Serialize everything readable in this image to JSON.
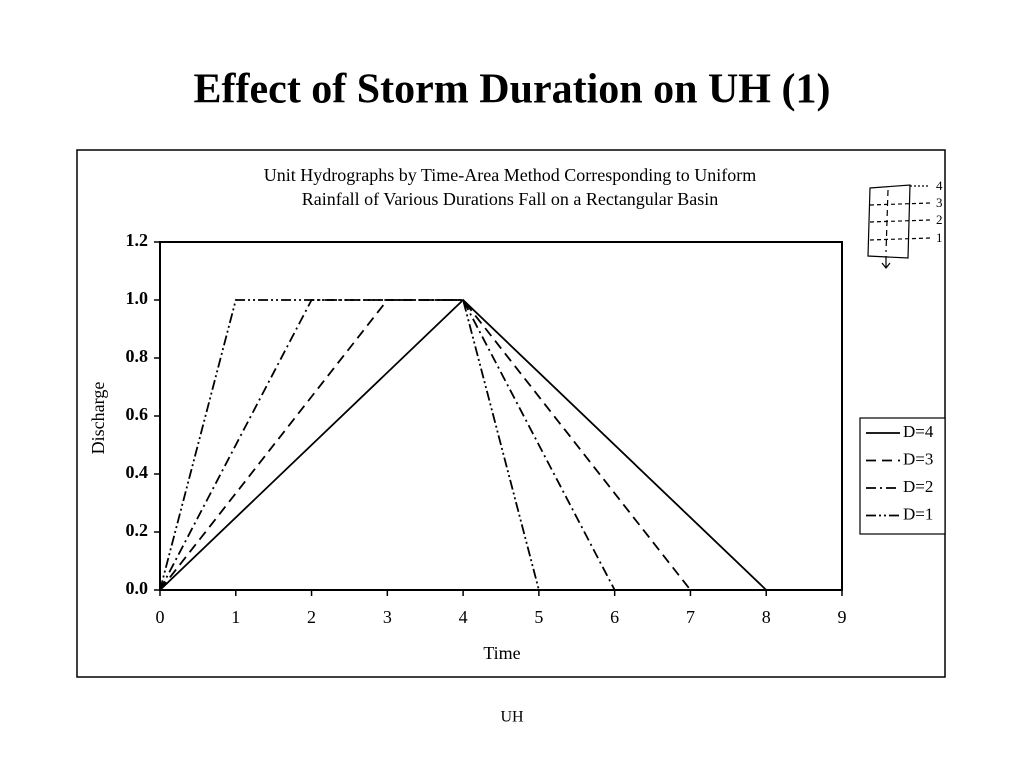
{
  "slide_title": "Effect of Storm Duration on UH (1)",
  "footer": "UH",
  "basin_sketch": {
    "labels": [
      "4",
      "3",
      "2",
      "1"
    ]
  },
  "chart_data": {
    "type": "line",
    "title": [
      "Unit Hydrographs by Time-Area Method Corresponding to Uniform",
      "Rainfall of Various Durations Fall on a Rectangular Basin"
    ],
    "x_label": "Time",
    "y_label": "Discharge",
    "xlim": [
      0,
      9
    ],
    "xticks": [
      0,
      1,
      2,
      3,
      4,
      5,
      6,
      7,
      8,
      9
    ],
    "ylim": [
      0,
      1.2
    ],
    "yticks": [
      {
        "value": 0,
        "label": "0.0"
      },
      0.2,
      0.4,
      0.6,
      0.8,
      {
        "value": 1,
        "label": "1.0"
      },
      1.2
    ],
    "legend": "right",
    "series": [
      {
        "name": "D=4",
        "color": "#000000",
        "dash": "solid",
        "x": [
          0,
          4,
          8
        ],
        "values": [
          0,
          1,
          0
        ]
      },
      {
        "name": "D=3",
        "color": "#000000",
        "dash": "dashed",
        "x": [
          0,
          3,
          4,
          7
        ],
        "values": [
          0,
          1,
          1,
          0
        ]
      },
      {
        "name": "D=2",
        "color": "#000000",
        "dash": "dashdot",
        "x": [
          0,
          2,
          4,
          6
        ],
        "values": [
          0,
          1,
          1,
          0
        ]
      },
      {
        "name": "D=1",
        "color": "#000000",
        "dash": "dashdotdot",
        "x": [
          0,
          1,
          4,
          5
        ],
        "values": [
          0,
          1,
          1,
          0
        ]
      }
    ]
  }
}
